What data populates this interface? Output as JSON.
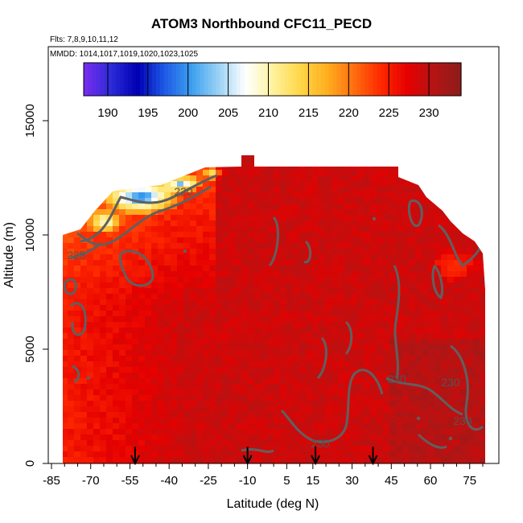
{
  "title": "ATOM3 Northbound CFC11_PECD",
  "subtitle_flights": "Flts: 7,8,9,10,11,12",
  "subtitle_dates": "MMDD: 1014,1017,1019,1020,1023,1025",
  "chart_data": {
    "type": "heatmap",
    "title": "ATOM3 Northbound CFC11_PECD",
    "xlabel": "Latitude (deg N)",
    "ylabel": "Altitude (m)",
    "xlim": [
      -85,
      82
    ],
    "ylim": [
      0,
      17500
    ],
    "x_ticks": [
      -85,
      -70,
      -55,
      -40,
      -25,
      -10,
      5,
      15,
      30,
      45,
      60,
      75
    ],
    "y_ticks": [
      0,
      5000,
      10000,
      15000
    ],
    "colorbar": {
      "ticks": [
        190,
        195,
        200,
        205,
        210,
        215,
        220,
        225,
        230
      ],
      "range": [
        187,
        234
      ],
      "colors": [
        "#7b2cf0",
        "#2c2cd8",
        "#0000b4",
        "#1e5ae6",
        "#3c9ff0",
        "#9ad2f5",
        "#ffffff",
        "#fff2a0",
        "#ffd84a",
        "#ffb020",
        "#ff7010",
        "#ff2a00",
        "#e60000",
        "#b41414",
        "#8c1c1c"
      ]
    },
    "contour_labels": [
      "225",
      "220",
      "230",
      "230",
      "230",
      "230"
    ],
    "flight_arrow_latitudes": [
      -53,
      -10,
      16,
      38
    ]
  }
}
